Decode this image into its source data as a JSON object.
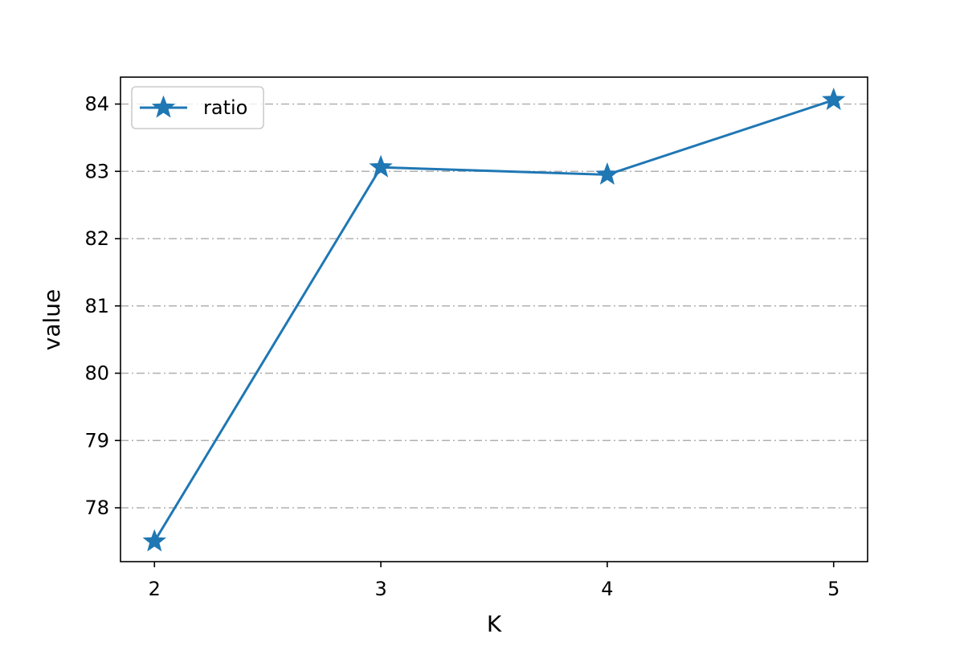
{
  "chart_data": {
    "type": "line",
    "title": "",
    "xlabel": "K",
    "ylabel": "value",
    "x": [
      2,
      3,
      4,
      5
    ],
    "xticks": [
      "2",
      "3",
      "4",
      "5"
    ],
    "yticks": [
      "78",
      "79",
      "80",
      "81",
      "82",
      "83",
      "84"
    ],
    "xlim": [
      1.85,
      5.15
    ],
    "ylim": [
      77.2,
      84.4
    ],
    "grid": "horizontal dash-dot",
    "legend_position": "upper-left",
    "series": [
      {
        "name": "ratio",
        "values": [
          77.5,
          83.06,
          82.95,
          84.06
        ],
        "color": "#1f77b4",
        "marker": "star"
      }
    ]
  }
}
